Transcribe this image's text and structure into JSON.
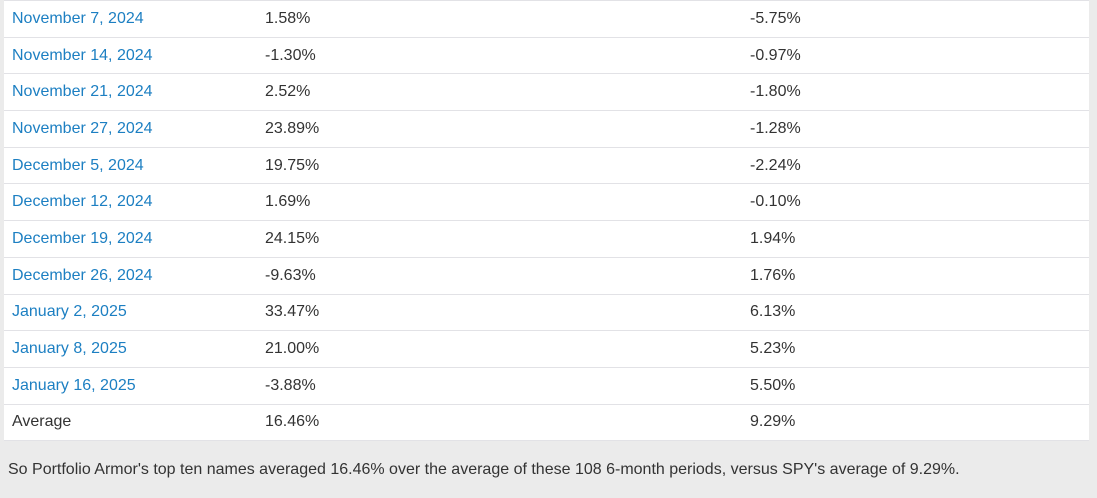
{
  "table": {
    "rows": [
      {
        "date": "November 7, 2024",
        "pa_return": "1.58%",
        "spy_return": "-5.75%"
      },
      {
        "date": "November 14, 2024",
        "pa_return": "-1.30%",
        "spy_return": "-0.97%"
      },
      {
        "date": "November 21, 2024",
        "pa_return": "2.52%",
        "spy_return": "-1.80%"
      },
      {
        "date": "November 27, 2024",
        "pa_return": "23.89%",
        "spy_return": "-1.28%"
      },
      {
        "date": "December 5, 2024",
        "pa_return": "19.75%",
        "spy_return": "-2.24%"
      },
      {
        "date": "December 12, 2024",
        "pa_return": "1.69%",
        "spy_return": "-0.10%"
      },
      {
        "date": "December 19, 2024",
        "pa_return": "24.15%",
        "spy_return": "1.94%"
      },
      {
        "date": "December 26, 2024",
        "pa_return": "-9.63%",
        "spy_return": "1.76%"
      },
      {
        "date": "January 2, 2025",
        "pa_return": "33.47%",
        "spy_return": "6.13%"
      },
      {
        "date": "January 8, 2025",
        "pa_return": "21.00%",
        "spy_return": "5.23%"
      },
      {
        "date": "January 16, 2025",
        "pa_return": "-3.88%",
        "spy_return": "5.50%"
      },
      {
        "date": "Average",
        "pa_return": "16.46%",
        "spy_return": "9.29%"
      }
    ]
  },
  "summary": {
    "text": "So Portfolio Armor's top ten names averaged 16.46% over the average of these 108 6-month periods, versus SPY's average of 9.29%."
  },
  "colors": {
    "link_blue": "#1c7fc2",
    "text": "#333333",
    "page_background": "#ebebeb",
    "row_border": "#e2e2e6"
  }
}
